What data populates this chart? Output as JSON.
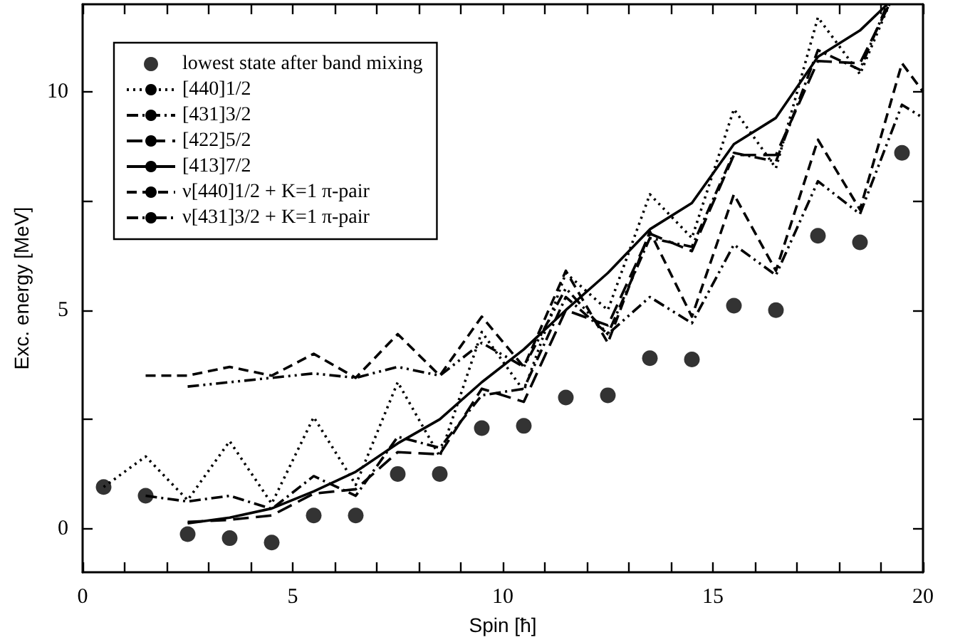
{
  "chart_data": {
    "type": "line",
    "xlabel": "Spin [ħ]",
    "ylabel": "Exc. energy [MeV]",
    "xlim": [
      0,
      20
    ],
    "ylim": [
      -1,
      12
    ],
    "xticks": [
      0,
      {
        "value": 1,
        "label": null
      },
      {
        "value": 2,
        "label": null
      },
      {
        "value": 3,
        "label": null
      },
      {
        "value": 4,
        "label": null
      },
      5,
      {
        "value": 6,
        "label": null
      },
      {
        "value": 7,
        "label": null
      },
      {
        "value": 8,
        "label": null
      },
      {
        "value": 9,
        "label": null
      },
      10,
      {
        "value": 11,
        "label": null
      },
      {
        "value": 12,
        "label": null
      },
      {
        "value": 13,
        "label": null
      },
      {
        "value": 14,
        "label": null
      },
      15,
      {
        "value": 16,
        "label": null
      },
      {
        "value": 17,
        "label": null
      },
      {
        "value": 18,
        "label": null
      },
      {
        "value": 19,
        "label": null
      },
      20
    ],
    "yticks": [
      0,
      {
        "value": 2.5,
        "label": null
      },
      5,
      {
        "value": 7.5,
        "label": null
      },
      10
    ],
    "grid": false,
    "legend": "top left",
    "series": [
      {
        "name": "lowest state after band mixing",
        "type": "scatter",
        "marker": "circle",
        "color": "#000000",
        "x": [
          0.5,
          1.5,
          2.5,
          3.5,
          4.5,
          5.5,
          6.5,
          7.5,
          8.5,
          9.5,
          10.5,
          11.5,
          12.5,
          13.5,
          14.5,
          15.5,
          16.5,
          17.5,
          18.5,
          19.5
        ],
        "values": [
          0.95,
          0.75,
          -0.13,
          -0.22,
          -0.32,
          0.3,
          0.3,
          1.25,
          1.25,
          2.3,
          2.35,
          3.0,
          3.05,
          3.9,
          3.87,
          5.1,
          5.0,
          6.7,
          6.55,
          8.6
        ]
      },
      {
        "name": "[440]1/2",
        "line_style": "dotted",
        "color": "#000000",
        "x": [
          0.5,
          1.5,
          2.5,
          3.5,
          4.5,
          5.5,
          6.5,
          7.5,
          8.5,
          9.5,
          10.5,
          11.5,
          12.5,
          13.5,
          14.5,
          15.5,
          16.5,
          17.5,
          18.5,
          19.2
        ],
        "values": [
          0.95,
          1.65,
          0.65,
          2.0,
          0.57,
          2.55,
          1.0,
          3.35,
          1.65,
          4.5,
          3.15,
          5.85,
          5.0,
          7.65,
          6.65,
          9.6,
          8.25,
          11.7,
          10.4,
          12
        ]
      },
      {
        "name": "[431]3/2",
        "line_style": "dashdot",
        "color": "#000000",
        "x": [
          1.5,
          2.5,
          3.5,
          4.5,
          5.5,
          6.5,
          7.5,
          8.5,
          9.5,
          10.5,
          11.5,
          12.5,
          13.5,
          14.5,
          15.5,
          16.5,
          17.5,
          18.5,
          19.15
        ],
        "values": [
          0.75,
          0.62,
          0.75,
          0.45,
          1.2,
          0.75,
          2.1,
          1.85,
          3.05,
          3.2,
          5.3,
          4.45,
          6.65,
          6.45,
          8.6,
          8.4,
          10.95,
          10.5,
          12
        ]
      },
      {
        "name": "[422]5/2",
        "line_style": "longdash",
        "color": "#000000",
        "x": [
          2.5,
          3.5,
          4.5,
          5.5,
          6.5,
          7.5,
          8.5,
          9.5,
          10.5,
          11.5,
          12.5,
          13.5,
          14.5,
          15.5,
          16.5,
          17.5,
          18.5,
          19.2
        ],
        "values": [
          0.15,
          0.2,
          0.3,
          0.8,
          0.9,
          1.75,
          1.7,
          3.2,
          2.9,
          5.0,
          4.65,
          6.75,
          6.35,
          8.55,
          8.55,
          10.7,
          10.65,
          12
        ]
      },
      {
        "name": "[413]7/2",
        "line_style": "solid",
        "color": "#000000",
        "x": [
          2.5,
          3.5,
          4.5,
          5.5,
          6.5,
          7.5,
          8.5,
          9.5,
          10.5,
          11.5,
          12.5,
          13.5,
          14.5,
          15.5,
          16.5,
          17.5,
          18.5,
          19.15
        ],
        "values": [
          0.12,
          0.25,
          0.46,
          0.85,
          1.3,
          1.95,
          2.5,
          3.35,
          4.1,
          5.0,
          5.85,
          6.85,
          7.45,
          8.8,
          9.4,
          10.8,
          11.4,
          12
        ]
      },
      {
        "name": "ν[440]1/2 + K=1 π-pair",
        "line_style": "dashed",
        "color": "#000000",
        "x": [
          1.5,
          2.5,
          3.5,
          4.5,
          5.5,
          6.5,
          7.5,
          8.5,
          9.5,
          10.5,
          11.5,
          12.5,
          13.5,
          14.5,
          15.5,
          16.5,
          17.5,
          18.5,
          19.5,
          20
        ],
        "values": [
          3.5,
          3.5,
          3.7,
          3.5,
          4.0,
          3.45,
          4.45,
          3.5,
          4.85,
          3.7,
          5.9,
          4.25,
          6.8,
          4.85,
          7.65,
          5.9,
          8.9,
          7.3,
          10.65,
          10.0
        ]
      },
      {
        "name": "ν[431]3/2 + K=1 π-pair",
        "line_style": "dashdotdot",
        "color": "#000000",
        "x": [
          2.5,
          3.5,
          4.5,
          5.5,
          6.5,
          7.5,
          8.5,
          9.5,
          10.5,
          11.5,
          12.5,
          13.5,
          14.5,
          15.5,
          16.5,
          17.5,
          18.5,
          19.5,
          20
        ],
        "values": [
          3.25,
          3.35,
          3.45,
          3.55,
          3.45,
          3.7,
          3.5,
          4.25,
          3.7,
          5.5,
          4.45,
          5.3,
          4.7,
          6.5,
          5.8,
          7.95,
          7.2,
          9.7,
          9.4
        ]
      }
    ]
  }
}
